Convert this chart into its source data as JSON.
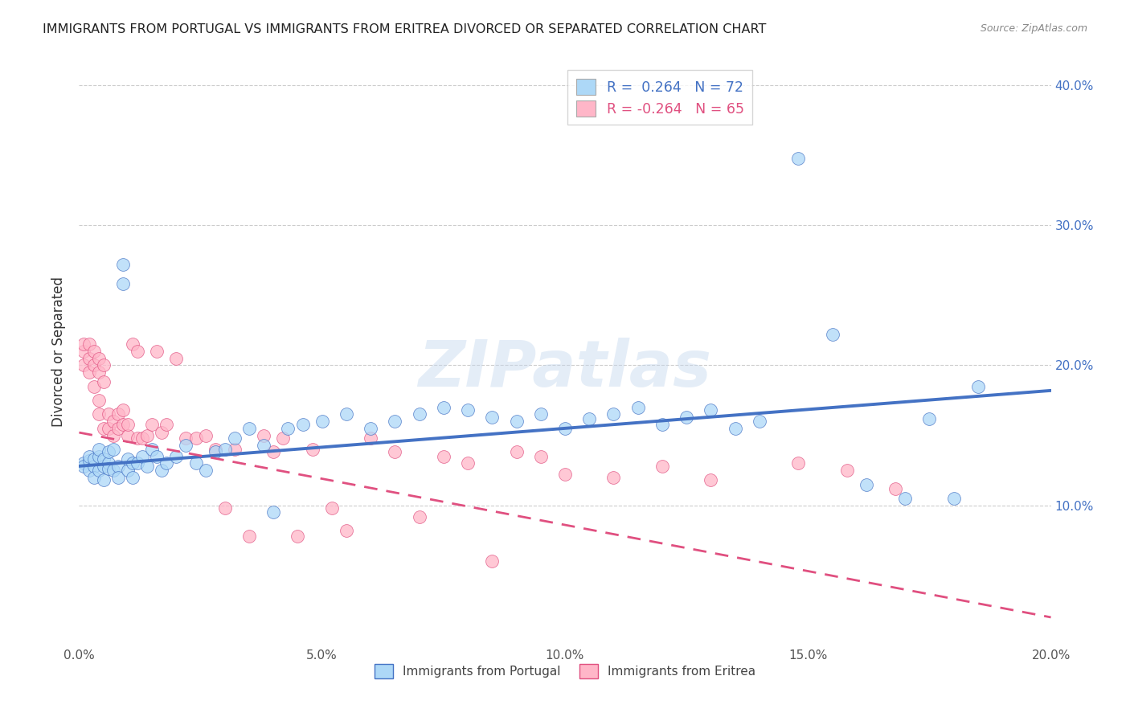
{
  "title": "IMMIGRANTS FROM PORTUGAL VS IMMIGRANTS FROM ERITREA DIVORCED OR SEPARATED CORRELATION CHART",
  "source": "Source: ZipAtlas.com",
  "ylabel": "Divorced or Separated",
  "xlim": [
    0.0,
    0.2
  ],
  "ylim": [
    0.0,
    0.42
  ],
  "xticks": [
    0.0,
    0.05,
    0.1,
    0.15,
    0.2
  ],
  "xticklabels": [
    "0.0%",
    "5.0%",
    "10.0%",
    "15.0%",
    "20.0%"
  ],
  "yticks_right": [
    0.1,
    0.2,
    0.3,
    0.4
  ],
  "yticklabels_right": [
    "10.0%",
    "20.0%",
    "30.0%",
    "40.0%"
  ],
  "color_portugal": "#add8f7",
  "color_eritrea": "#ffb6c8",
  "line_color_portugal": "#4472c4",
  "line_color_eritrea": "#e05080",
  "watermark": "ZIPatlas",
  "portugal_x": [
    0.001,
    0.001,
    0.002,
    0.002,
    0.002,
    0.003,
    0.003,
    0.003,
    0.004,
    0.004,
    0.004,
    0.005,
    0.005,
    0.005,
    0.006,
    0.006,
    0.006,
    0.007,
    0.007,
    0.008,
    0.008,
    0.009,
    0.009,
    0.01,
    0.01,
    0.011,
    0.011,
    0.012,
    0.013,
    0.014,
    0.015,
    0.016,
    0.017,
    0.018,
    0.02,
    0.022,
    0.024,
    0.026,
    0.028,
    0.03,
    0.032,
    0.035,
    0.038,
    0.04,
    0.043,
    0.046,
    0.05,
    0.055,
    0.06,
    0.065,
    0.07,
    0.075,
    0.08,
    0.085,
    0.09,
    0.095,
    0.1,
    0.105,
    0.11,
    0.115,
    0.12,
    0.125,
    0.13,
    0.135,
    0.14,
    0.148,
    0.155,
    0.162,
    0.17,
    0.175,
    0.18,
    0.185
  ],
  "portugal_y": [
    0.13,
    0.128,
    0.132,
    0.125,
    0.135,
    0.128,
    0.133,
    0.12,
    0.135,
    0.125,
    0.14,
    0.128,
    0.133,
    0.118,
    0.13,
    0.126,
    0.138,
    0.125,
    0.14,
    0.128,
    0.12,
    0.258,
    0.272,
    0.125,
    0.133,
    0.13,
    0.12,
    0.13,
    0.135,
    0.128,
    0.14,
    0.135,
    0.125,
    0.13,
    0.135,
    0.143,
    0.13,
    0.125,
    0.138,
    0.14,
    0.148,
    0.155,
    0.143,
    0.095,
    0.155,
    0.158,
    0.16,
    0.165,
    0.155,
    0.16,
    0.165,
    0.17,
    0.168,
    0.163,
    0.16,
    0.165,
    0.155,
    0.162,
    0.165,
    0.17,
    0.158,
    0.163,
    0.168,
    0.155,
    0.16,
    0.348,
    0.222,
    0.115,
    0.105,
    0.162,
    0.105,
    0.185
  ],
  "eritrea_x": [
    0.001,
    0.001,
    0.001,
    0.002,
    0.002,
    0.002,
    0.003,
    0.003,
    0.003,
    0.004,
    0.004,
    0.004,
    0.004,
    0.005,
    0.005,
    0.005,
    0.006,
    0.006,
    0.007,
    0.007,
    0.008,
    0.008,
    0.009,
    0.009,
    0.01,
    0.01,
    0.011,
    0.012,
    0.012,
    0.013,
    0.014,
    0.015,
    0.016,
    0.017,
    0.018,
    0.02,
    0.022,
    0.024,
    0.026,
    0.028,
    0.03,
    0.032,
    0.035,
    0.038,
    0.04,
    0.042,
    0.045,
    0.048,
    0.052,
    0.055,
    0.06,
    0.065,
    0.07,
    0.075,
    0.08,
    0.085,
    0.09,
    0.095,
    0.1,
    0.11,
    0.12,
    0.13,
    0.148,
    0.158,
    0.168
  ],
  "eritrea_y": [
    0.21,
    0.215,
    0.2,
    0.215,
    0.205,
    0.195,
    0.21,
    0.2,
    0.185,
    0.205,
    0.195,
    0.175,
    0.165,
    0.2,
    0.188,
    0.155,
    0.165,
    0.155,
    0.16,
    0.15,
    0.165,
    0.155,
    0.158,
    0.168,
    0.15,
    0.158,
    0.215,
    0.21,
    0.148,
    0.148,
    0.15,
    0.158,
    0.21,
    0.152,
    0.158,
    0.205,
    0.148,
    0.148,
    0.15,
    0.14,
    0.098,
    0.14,
    0.078,
    0.15,
    0.138,
    0.148,
    0.078,
    0.14,
    0.098,
    0.082,
    0.148,
    0.138,
    0.092,
    0.135,
    0.13,
    0.06,
    0.138,
    0.135,
    0.122,
    0.12,
    0.128,
    0.118,
    0.13,
    0.125,
    0.112
  ],
  "blue_line_x": [
    0.0,
    0.2
  ],
  "blue_line_y": [
    0.128,
    0.182
  ],
  "pink_line_x": [
    0.0,
    0.2
  ],
  "pink_line_y": [
    0.152,
    0.02
  ]
}
